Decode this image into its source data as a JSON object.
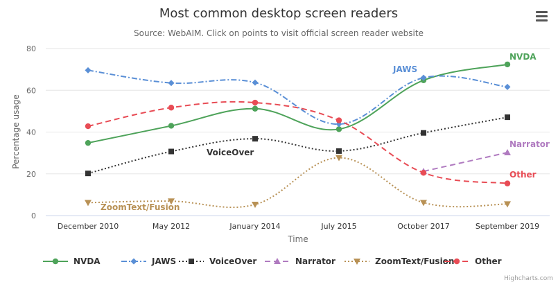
{
  "chart_data": {
    "type": "line",
    "title": "Most common desktop screen readers",
    "subtitle": "Source: WebAIM. Click on points to visit official screen reader website",
    "xlabel": "Time",
    "ylabel": "Percentage usage",
    "categories": [
      "December 2010",
      "May 2012",
      "January 2014",
      "July 2015",
      "October 2017",
      "September 2019"
    ],
    "yticks": [
      "0",
      "20",
      "40",
      "60",
      "80"
    ],
    "ylim": [
      0,
      80
    ],
    "grid": true,
    "legend_position": "bottom",
    "series": [
      {
        "name": "NVDA",
        "color": "#4ea35a",
        "dash": "solid",
        "marker": "circle",
        "values": [
          34.8,
          43.0,
          51.2,
          41.4,
          64.8,
          72.4
        ],
        "label": "NVDA"
      },
      {
        "name": "JAWS",
        "color": "#5a8fd6",
        "dash": "dashdot",
        "marker": "diamond",
        "values": [
          69.6,
          63.5,
          63.7,
          43.8,
          66.0,
          61.6
        ],
        "label": "JAWS"
      },
      {
        "name": "VoiceOver",
        "color": "#333333",
        "dash": "dot",
        "marker": "square",
        "values": [
          20.2,
          30.7,
          36.8,
          30.9,
          39.6,
          47.1
        ],
        "label": "VoiceOver"
      },
      {
        "name": "Narrator",
        "color": "#b07bc0",
        "dash": "dash",
        "marker": "triangle",
        "values": [
          null,
          null,
          null,
          null,
          21.2,
          30.2
        ],
        "label": "Narrator"
      },
      {
        "name": "ZoomText/Fusion",
        "color": "#b89155",
        "dash": "dot",
        "marker": "triangle-down",
        "values": [
          6.2,
          6.9,
          5.3,
          27.7,
          6.2,
          5.5
        ],
        "label": "ZoomText/Fusion"
      },
      {
        "name": "Other",
        "color": "#e84c55",
        "dash": "dash",
        "marker": "circle",
        "values": [
          42.8,
          51.7,
          54.1,
          45.6,
          20.5,
          15.4
        ],
        "label": "Other"
      }
    ]
  },
  "credits": "Highcharts.com",
  "menu": {
    "icon": "hamburger-menu-icon"
  }
}
